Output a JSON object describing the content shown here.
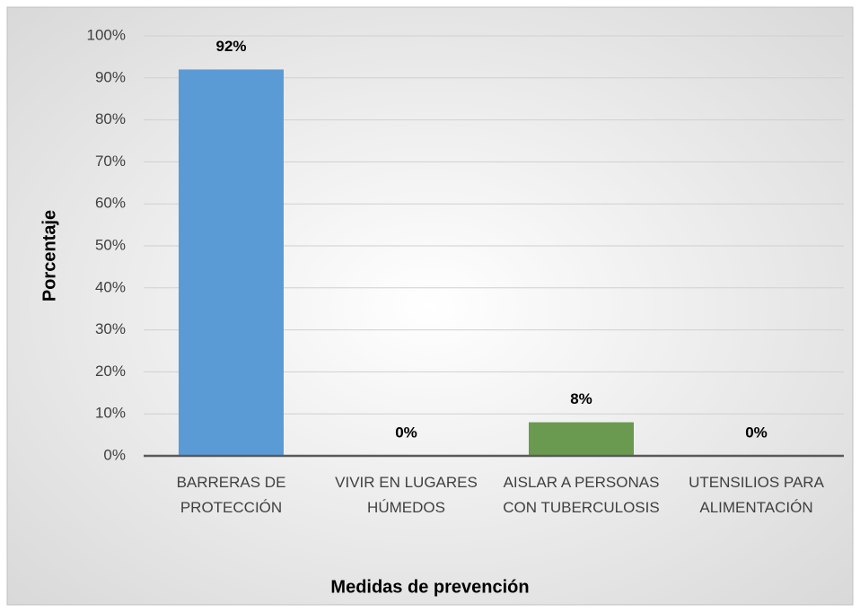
{
  "chart_data": {
    "type": "bar",
    "x_label": "Medidas de prevención",
    "y_label": "Porcentaje",
    "categories": [
      "BARRERAS DE PROTECCIÓN",
      "VIVIR EN LUGARES HÚMEDOS",
      "AISLAR A PERSONAS CON TUBERCULOSIS",
      "UTENSILIOS PARA ALIMENTACIÓN"
    ],
    "values": [
      92,
      0,
      8,
      0
    ],
    "value_labels": [
      "92%",
      "0%",
      "8%",
      "0%"
    ],
    "colors": [
      "#5b9bd5",
      "#5b9bd5",
      "#6a9a4f",
      "#6a9a4f"
    ],
    "ylim": [
      0,
      100
    ],
    "yticks": [
      {
        "value": 0,
        "label": "0%"
      },
      {
        "value": 10,
        "label": "10%"
      },
      {
        "value": 20,
        "label": "20%"
      },
      {
        "value": 30,
        "label": "30%"
      },
      {
        "value": 40,
        "label": "40%"
      },
      {
        "value": 50,
        "label": "50%"
      },
      {
        "value": 60,
        "label": "60%"
      },
      {
        "value": 70,
        "label": "70%"
      },
      {
        "value": 80,
        "label": "80%"
      },
      {
        "value": 90,
        "label": "90%"
      },
      {
        "value": 100,
        "label": "100%"
      }
    ],
    "grid": true
  }
}
